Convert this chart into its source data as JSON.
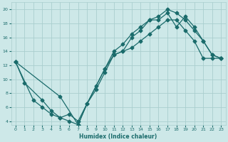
{
  "xlabel": "Humidex (Indice chaleur)",
  "ylabel": "",
  "bg_color": "#cde8e8",
  "grid_color": "#aacece",
  "line_color": "#1a6b6b",
  "xlim": [
    -0.5,
    23.5
  ],
  "ylim": [
    3.5,
    21
  ],
  "xticks": [
    0,
    1,
    2,
    3,
    4,
    5,
    6,
    7,
    8,
    9,
    10,
    11,
    12,
    13,
    14,
    15,
    16,
    17,
    18,
    19,
    20,
    21,
    22,
    23
  ],
  "yticks": [
    4,
    6,
    8,
    10,
    12,
    14,
    16,
    18,
    20
  ],
  "line1_x": [
    0,
    1,
    3,
    4,
    5,
    6,
    7,
    10,
    11,
    12,
    13,
    14,
    15,
    16,
    17,
    18,
    19,
    20,
    21,
    22,
    23
  ],
  "line1_y": [
    12.5,
    9.5,
    7.0,
    5.5,
    4.5,
    5.0,
    4.0,
    11.5,
    13.5,
    14.0,
    16.0,
    17.0,
    18.5,
    18.5,
    19.5,
    17.5,
    19.0,
    17.5,
    15.5,
    13.5,
    13.0
  ],
  "line2_x": [
    0,
    2,
    3,
    4,
    5,
    6,
    7,
    8,
    9,
    10,
    11,
    12,
    13,
    14,
    15,
    16,
    17,
    18,
    19,
    20,
    21,
    22,
    23
  ],
  "line2_y": [
    12.5,
    7.0,
    6.0,
    5.0,
    4.5,
    4.0,
    3.5,
    6.5,
    8.5,
    11.0,
    13.5,
    14.0,
    14.5,
    15.5,
    16.5,
    17.5,
    18.5,
    18.5,
    17.0,
    15.5,
    13.0,
    13.0,
    13.0
  ],
  "line3_x": [
    0,
    5,
    7,
    8,
    9,
    10,
    11,
    12,
    13,
    14,
    15,
    16,
    17,
    18,
    19,
    20,
    21,
    22,
    23
  ],
  "line3_y": [
    12.5,
    7.5,
    3.5,
    6.5,
    9.0,
    11.5,
    14.0,
    15.0,
    16.5,
    17.5,
    18.5,
    19.0,
    20.0,
    19.5,
    18.5,
    17.0,
    15.5,
    13.5,
    13.0
  ]
}
